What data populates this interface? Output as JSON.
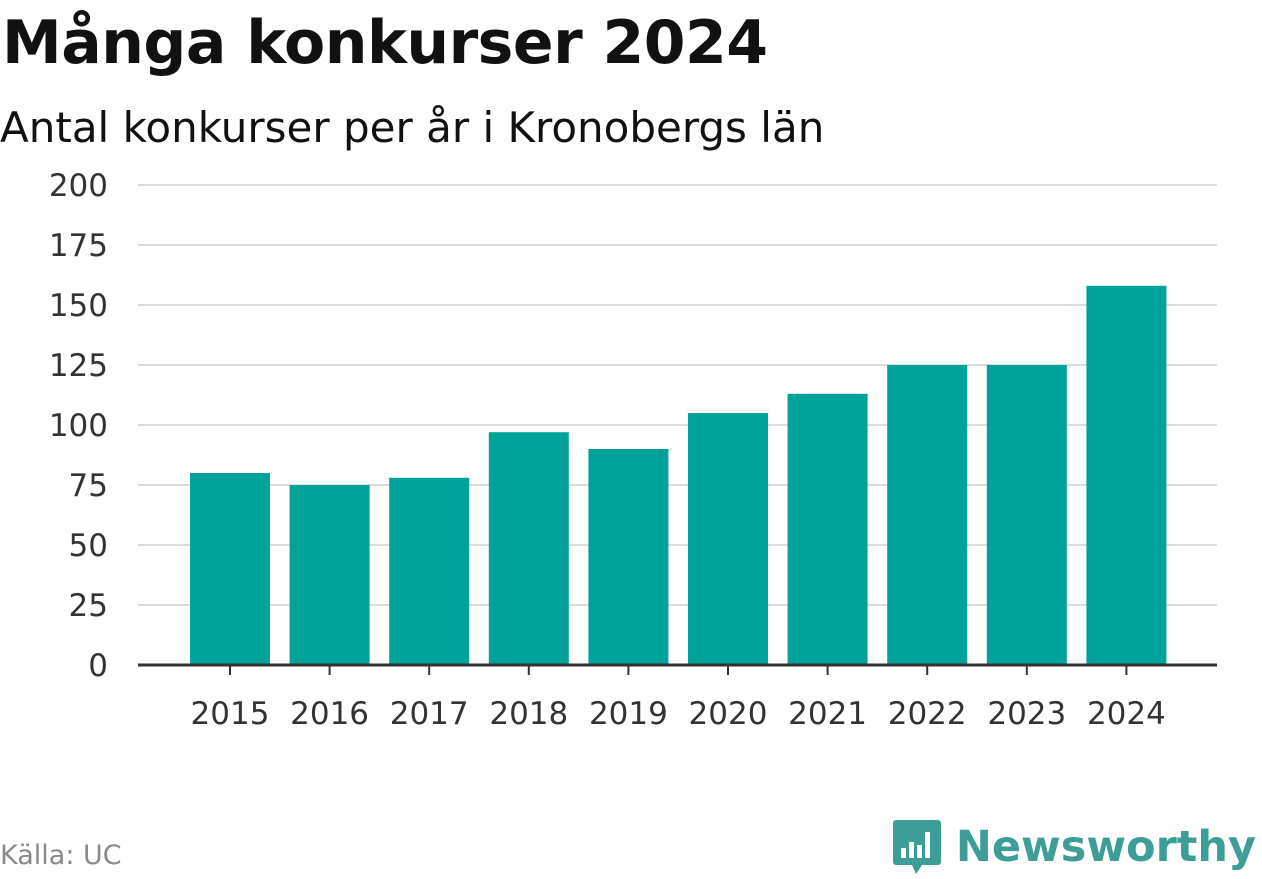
{
  "colors": {
    "bar": "#00a39a",
    "grid": "#dcdcdc",
    "axis": "#333333",
    "brand": "#3d9e98"
  },
  "source": "Källa: UC",
  "brand": {
    "name": "Newsworthy",
    "icon": "newsworthy-logo-icon"
  },
  "chart_data": {
    "type": "bar",
    "title": "Många konkurser 2024",
    "subtitle": "Antal konkurser per år i Kronobergs län",
    "categories": [
      "2015",
      "2016",
      "2017",
      "2018",
      "2019",
      "2020",
      "2021",
      "2022",
      "2023",
      "2024"
    ],
    "values": [
      80,
      75,
      78,
      97,
      90,
      105,
      113,
      125,
      125,
      158
    ],
    "ylim": [
      0,
      200
    ],
    "yticks": [
      0,
      25,
      50,
      75,
      100,
      125,
      150,
      175,
      200
    ],
    "xlabel": "",
    "ylabel": "",
    "grid": true,
    "legend": "none"
  }
}
